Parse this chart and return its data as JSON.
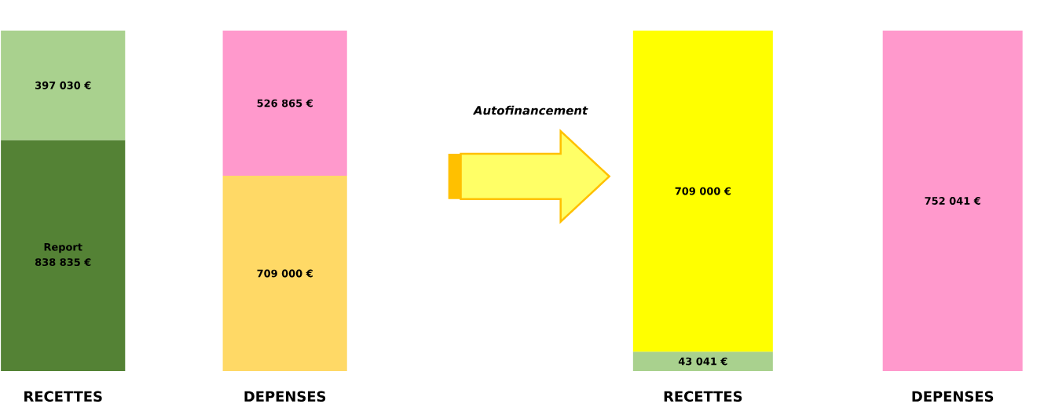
{
  "chart_data": [
    {
      "type": "bar",
      "stacked": true,
      "categories": [
        "RECETTES",
        "DEPENSES"
      ],
      "series": [
        {
          "values": [
            838835,
            709000
          ],
          "colors": [
            "#548235",
            "#ffd966"
          ],
          "value_labels": [
            "838 835 €",
            "709 000 €"
          ]
        },
        {
          "values": [
            397030,
            526865
          ],
          "colors": [
            "#a9d18e",
            "#ff99cc"
          ],
          "value_labels": [
            "397 030 €",
            "526 865 €"
          ]
        }
      ],
      "annotations": [
        "Report"
      ]
    },
    {
      "type": "bar",
      "stacked": true,
      "categories": [
        "RECETTES",
        "DEPENSES"
      ],
      "series": [
        {
          "values": [
            43041,
            752041
          ],
          "colors": [
            "#a9d18e",
            "#ff99cc"
          ],
          "value_labels": [
            "43 041 €",
            "752 041 €"
          ]
        },
        {
          "values": [
            709000,
            null
          ],
          "colors": [
            "#ffff00",
            null
          ],
          "value_labels": [
            "709 000 €",
            null
          ]
        }
      ],
      "annotations": [
        "Autofinancement"
      ]
    }
  ]
}
